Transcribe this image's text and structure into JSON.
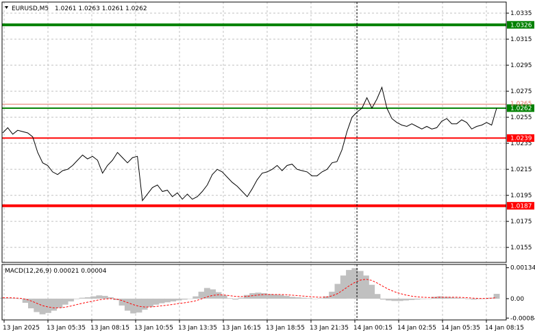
{
  "header": {
    "symbol": "EURUSD,M5",
    "ohlc": "1.0261 1.0263 1.0261 1.0262"
  },
  "colors": {
    "price_line": "#000000",
    "green_level": "#008000",
    "red_level": "#ff0000",
    "resistance_line": "#e07060",
    "histogram": "#c0c0c0",
    "signal": "#ff0000",
    "grid": "#c0c0c0"
  },
  "chart_data": [
    {
      "type": "line",
      "title": "",
      "ylim": [
        1.01435,
        1.03435
      ],
      "y_ticks": [
        "1.0335",
        "1.0315",
        "1.0295",
        "1.0275",
        "1.0255",
        "1.0235",
        "1.0215",
        "1.0195",
        "1.0175",
        "1.0155"
      ],
      "x_ticks": [
        "13 Jan 2025",
        "13 Jan 05:35",
        "13 Jan 08:15",
        "13 Jan 10:55",
        "13 Jan 13:35",
        "13 Jan 16:15",
        "13 Jan 18:55",
        "13 Jan 21:35",
        "14 Jan 00:15",
        "14 Jan 02:55",
        "14 Jan 05:35",
        "14 Jan 08:15"
      ],
      "current_price": "1.0262",
      "price_label_top": "1.0265",
      "levels": [
        {
          "value": 1.0326,
          "label": "1.0326",
          "color": "green"
        },
        {
          "value": 1.0265,
          "label": "",
          "color": "salmon"
        },
        {
          "value": 1.0262,
          "label": "1.0262",
          "color": "green"
        },
        {
          "value": 1.0239,
          "label": "1.0239",
          "color": "red"
        },
        {
          "value": 1.0187,
          "label": "1.0187",
          "color": "red"
        }
      ],
      "cursor_x_index": 71,
      "series": [
        {
          "values": [
            1.0243,
            1.0247,
            1.0242,
            1.0245,
            1.0244,
            1.0243,
            1.024,
            1.0228,
            1.022,
            1.0218,
            1.0213,
            1.0211,
            1.0214,
            1.0215,
            1.0218,
            1.0222,
            1.0226,
            1.0223,
            1.0225,
            1.0222,
            1.0212,
            1.0218,
            1.0222,
            1.0228,
            1.0224,
            1.022,
            1.0224,
            1.0225,
            1.0191,
            1.0196,
            1.0201,
            1.0203,
            1.0198,
            1.0199,
            1.0194,
            1.0197,
            1.0192,
            1.0196,
            1.0192,
            1.0194,
            1.0198,
            1.0203,
            1.0211,
            1.0215,
            1.0213,
            1.0209,
            1.0205,
            1.0202,
            1.0198,
            1.0194,
            1.02,
            1.0207,
            1.0212,
            1.0213,
            1.0215,
            1.0218,
            1.0214,
            1.0218,
            1.0219,
            1.0215,
            1.0214,
            1.0213,
            1.021,
            1.021,
            1.0213,
            1.0215,
            1.022,
            1.0221,
            1.023,
            1.0244,
            1.0255,
            1.0259,
            1.0262,
            1.027,
            1.0262,
            1.0269,
            1.0278,
            1.0262,
            1.0254,
            1.0251,
            1.0249,
            1.0248,
            1.025,
            1.0248,
            1.0246,
            1.0248,
            1.0246,
            1.0247,
            1.0252,
            1.0254,
            1.025,
            1.025,
            1.0253,
            1.0251,
            1.0246,
            1.0248,
            1.0249,
            1.0251,
            1.0249,
            1.0262
          ]
        }
      ]
    },
    {
      "type": "bar",
      "title": "MACD(12,26,9) 0.00021 0.00004",
      "ylim": [
        -0.00092,
        0.00148
      ],
      "y_ticks": [
        "0.00134",
        "0.00",
        "-0.00084"
      ],
      "series": [
        {
          "name": "MACD",
          "values": [
            4e-05,
            3e-05,
            2e-05,
            0.0,
            -0.00018,
            -0.00042,
            -0.00058,
            -0.00068,
            -0.00062,
            -0.00052,
            -0.0004,
            -0.00026,
            -0.00012,
            -2e-05,
            4e-05,
            6e-05,
            0.0001,
            0.00014,
            0.00012,
            6e-05,
            -6e-05,
            -0.0003,
            -0.00052,
            -0.00064,
            -0.0006,
            -0.00048,
            -0.00036,
            -0.00026,
            -0.0002,
            -0.00016,
            -0.00012,
            -8e-05,
            -4e-05,
            0.0,
            0.0001,
            0.0003,
            0.00046,
            0.0004,
            0.00028,
            0.00014,
            2e-05,
            -4e-05,
            4e-05,
            0.00016,
            0.00024,
            0.00026,
            0.00024,
            0.0002,
            0.00018,
            0.00016,
            0.00012,
            8e-05,
            6e-05,
            4e-05,
            2e-05,
            0.0,
            2e-05,
            0.0001,
            0.0003,
            0.00064,
            0.001,
            0.00124,
            0.00132,
            0.0012,
            0.001,
            0.0006,
            0.0002,
            -4e-05,
            -8e-05,
            -0.0001,
            -0.0001,
            -8e-05,
            -6e-05,
            -4e-05,
            -2e-05,
            0.0,
            8e-05,
            0.0001,
            8e-05,
            6e-05,
            4e-05,
            2e-05,
            -2e-05,
            -4e-05,
            -2e-05,
            0.0,
            4e-05,
            0.00021
          ]
        },
        {
          "name": "Signal",
          "values": [
            4e-05,
            4e-05,
            3e-05,
            2e-05,
            -2e-05,
            -0.0001,
            -0.0002,
            -0.0003,
            -0.00036,
            -0.0004,
            -0.0004,
            -0.00037,
            -0.00032,
            -0.00026,
            -0.0002,
            -0.00015,
            -0.0001,
            -5e-05,
            -2e-05,
            0.0,
            -2e-05,
            -8e-05,
            -0.00017,
            -0.00026,
            -0.00033,
            -0.00036,
            -0.00036,
            -0.00034,
            -0.00031,
            -0.00028,
            -0.00025,
            -0.00021,
            -0.00018,
            -0.00014,
            -9e-05,
            -1e-05,
            8e-05,
            0.00014,
            0.00017,
            0.00016,
            0.00013,
            0.0001,
            9e-05,
            0.0001,
            0.00013,
            0.00016,
            0.00018,
            0.00018,
            0.00018,
            0.00018,
            0.00017,
            0.00015,
            0.00013,
            0.00011,
            9e-05,
            7e-05,
            6e-05,
            7e-05,
            0.00012,
            0.00022,
            0.00038,
            0.00055,
            0.0007,
            0.0008,
            0.00084,
            0.00079,
            0.00067,
            0.00053,
            0.0004,
            0.0003,
            0.00022,
            0.00016,
            0.00011,
            8e-05,
            6e-05,
            5e-05,
            5e-05,
            6e-05,
            6e-05,
            6e-05,
            6e-05,
            5e-05,
            4e-05,
            2e-05,
            1e-05,
            1e-05,
            2e-05,
            4e-05
          ]
        }
      ]
    }
  ]
}
